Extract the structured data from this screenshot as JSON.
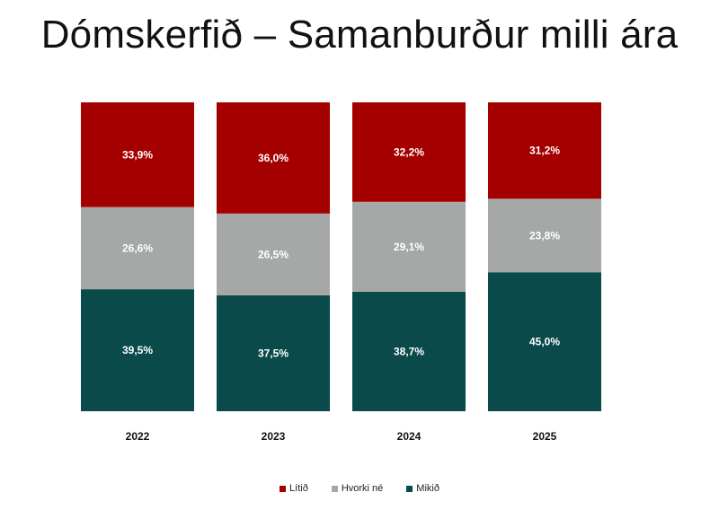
{
  "chart_data": {
    "type": "bar",
    "stacked": true,
    "title": "Dómskerfið – Samanburður milli ára",
    "categories": [
      "2022",
      "2023",
      "2024",
      "2025"
    ],
    "series": [
      {
        "name": "Lítið",
        "color": "#a50000",
        "values": [
          33.9,
          36.0,
          32.2,
          31.2
        ],
        "labels": [
          "33,9%",
          "36,0%",
          "32,2%",
          "31,2%"
        ]
      },
      {
        "name": "Hvorki né",
        "color": "#a6a8a8",
        "values": [
          26.6,
          26.5,
          29.1,
          23.8
        ],
        "labels": [
          "26,6%",
          "26,5%",
          "29,1%",
          "23,8%"
        ]
      },
      {
        "name": "Mikið",
        "color": "#0b4a4b",
        "values": [
          39.5,
          37.5,
          38.7,
          45.0
        ],
        "labels": [
          "39,5%",
          "37,5%",
          "38,7%",
          "45,0%"
        ]
      }
    ],
    "ylim": [
      0,
      100
    ],
    "legend_position": "bottom",
    "grid": false
  }
}
